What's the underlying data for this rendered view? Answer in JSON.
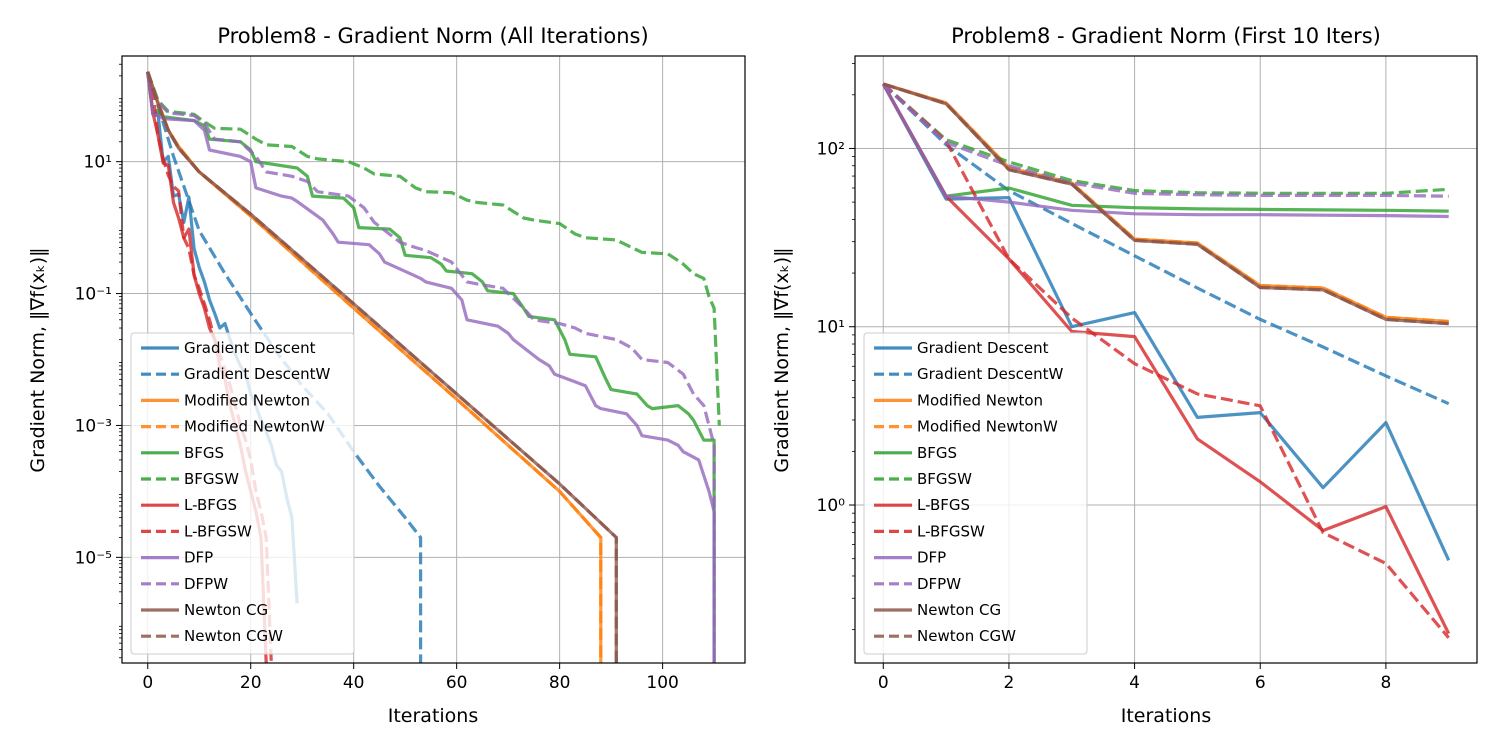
{
  "chart_data": [
    {
      "type": "line",
      "title": "Problem8 - Gradient Norm (All Iterations)",
      "xlabel": "Iterations",
      "ylabel": "Gradient Norm, ‖∇f(xₖ)‖",
      "yscale": "log",
      "xlim": [
        -5,
        116
      ],
      "ylim": [
        2.5e-07,
        400
      ],
      "xticks": [
        0,
        20,
        40,
        60,
        80,
        100
      ],
      "xtick_labels": [
        "0",
        "20",
        "40",
        "60",
        "80",
        "100"
      ],
      "yticks": [
        1e-05,
        0.001,
        0.1,
        10.0
      ],
      "ytick_labels": [
        "10⁻⁵",
        "10⁻³",
        "10⁻¹",
        "10¹"
      ],
      "grid": true,
      "legend_position": "lower-left",
      "series": [
        {
          "name": "Gradient Descent",
          "color": "#1f77b4",
          "dash": false,
          "x": [
            0,
            1,
            2,
            3,
            4,
            5,
            6,
            7,
            8,
            9,
            10,
            11,
            12,
            13,
            14,
            15,
            16,
            17,
            18,
            19,
            20,
            21,
            22,
            23,
            24,
            25,
            26,
            27,
            28,
            29
          ],
          "y": [
            230,
            52,
            53,
            10,
            12,
            3,
            3.2,
            1.2,
            2.9,
            0.48,
            0.25,
            0.15,
            0.08,
            0.05,
            0.03,
            0.035,
            0.02,
            0.012,
            0.008,
            0.006,
            0.003,
            0.002,
            0.0012,
            0.0008,
            0.0005,
            0.00025,
            0.0002,
            8e-05,
            4e-05,
            2e-06
          ]
        },
        {
          "name": "Gradient DescentW",
          "color": "#1f77b4",
          "dash": true,
          "x": [
            0,
            5,
            10,
            15,
            20,
            25,
            30,
            35,
            40,
            45,
            50,
            53,
            53
          ],
          "y": [
            230,
            12,
            0.9,
            0.2,
            0.05,
            0.013,
            0.004,
            0.0015,
            0.0004,
            0.00012,
            4e-05,
            2e-05,
            2.5e-07
          ]
        },
        {
          "name": "Modified Newton",
          "color": "#ff7f0e",
          "dash": false,
          "x": [
            0,
            2,
            4,
            6,
            10,
            20,
            40,
            60,
            80,
            88,
            88
          ],
          "y": [
            230,
            80,
            30,
            17,
            7,
            1.5,
            0.06,
            0.0025,
            0.0001,
            2e-05,
            2.5e-07
          ]
        },
        {
          "name": "Modified NewtonW",
          "color": "#ff7f0e",
          "dash": true,
          "x": [
            0,
            2,
            4,
            6,
            10,
            20,
            40,
            60,
            80,
            88,
            88
          ],
          "y": [
            230,
            80,
            30,
            17,
            7,
            1.5,
            0.06,
            0.0025,
            0.0001,
            2e-05,
            2.5e-07
          ]
        },
        {
          "name": "BFGS",
          "color": "#2ca02c",
          "dash": false,
          "x": [
            0,
            1,
            2,
            3,
            9,
            11,
            12,
            18,
            20,
            21,
            29,
            31,
            32,
            38,
            40,
            41,
            47,
            49,
            50,
            55,
            57,
            58,
            63,
            65,
            66,
            71,
            73,
            74,
            79,
            81,
            82,
            87,
            89,
            90,
            95,
            97,
            98,
            103,
            105,
            106,
            108,
            110,
            110
          ],
          "y": [
            230,
            55,
            60,
            48,
            42,
            35,
            22,
            20,
            15,
            10,
            8,
            6,
            3,
            2.8,
            2,
            1,
            0.95,
            0.7,
            0.38,
            0.35,
            0.28,
            0.22,
            0.2,
            0.15,
            0.11,
            0.1,
            0.06,
            0.045,
            0.04,
            0.02,
            0.012,
            0.011,
            0.005,
            0.0035,
            0.003,
            0.002,
            0.0018,
            0.002,
            0.0015,
            0.0012,
            0.0006,
            0.0006,
            2.5e-07
          ]
        },
        {
          "name": "BFGSW",
          "color": "#2ca02c",
          "dash": true,
          "x": [
            0,
            2,
            4,
            9,
            11,
            13,
            18,
            21,
            23,
            28,
            31,
            33,
            39,
            42,
            44,
            49,
            52,
            54,
            59,
            62,
            64,
            69,
            73,
            75,
            80,
            83,
            85,
            91,
            94,
            96,
            101,
            104,
            106,
            108,
            109,
            110,
            111
          ],
          "y": [
            230,
            85,
            58,
            52,
            40,
            32,
            31,
            22,
            18,
            17,
            12,
            11,
            10,
            8,
            6.5,
            6,
            4,
            3.5,
            3.4,
            2.6,
            2.4,
            2.2,
            1.4,
            1.3,
            1.15,
            0.8,
            0.7,
            0.65,
            0.5,
            0.42,
            0.4,
            0.28,
            0.2,
            0.17,
            0.09,
            0.06,
            0.001
          ]
        },
        {
          "name": "L-BFGS",
          "color": "#d62728",
          "dash": false,
          "x": [
            0,
            1,
            2,
            3,
            4,
            5,
            6,
            7,
            8,
            9,
            10,
            11,
            12,
            13,
            14,
            15,
            16,
            17,
            18,
            19,
            20,
            21,
            22,
            23
          ],
          "y": [
            230,
            55,
            25,
            9.5,
            8.8,
            2.4,
            1.4,
            0.7,
            0.95,
            0.19,
            0.1,
            0.06,
            0.03,
            0.02,
            0.008,
            0.005,
            0.002,
            0.001,
            0.0005,
            0.0002,
            0.0001,
            5e-05,
            2e-05,
            2.5e-07
          ]
        },
        {
          "name": "L-BFGSW",
          "color": "#d62728",
          "dash": true,
          "x": [
            0,
            1,
            2,
            3,
            4,
            5,
            6,
            7,
            8,
            9,
            10,
            11,
            12,
            13,
            14,
            15,
            16,
            17,
            18,
            19,
            20,
            21,
            22,
            23,
            24
          ],
          "y": [
            230,
            110,
            25,
            11,
            6.2,
            4.2,
            3.6,
            0.7,
            0.48,
            0.19,
            0.12,
            0.07,
            0.04,
            0.02,
            0.012,
            0.007,
            0.004,
            0.002,
            0.001,
            0.0006,
            0.0003,
            0.0001,
            5e-05,
            2e-05,
            2.5e-07
          ]
        },
        {
          "name": "DFP",
          "color": "#9467bd",
          "dash": false,
          "x": [
            0,
            1,
            2,
            3,
            9,
            11,
            12,
            18,
            20,
            21,
            26,
            28,
            29,
            34,
            36,
            37,
            43,
            45,
            46,
            51,
            53,
            54,
            59,
            61,
            62,
            68,
            70,
            71,
            76,
            78,
            79,
            85,
            87,
            88,
            93,
            95,
            96,
            101,
            103,
            104,
            107,
            109,
            110,
            110
          ],
          "y": [
            230,
            52,
            50,
            45,
            42,
            30,
            15,
            12,
            10,
            4,
            3,
            2.8,
            2.5,
            1.3,
            0.8,
            0.6,
            0.55,
            0.4,
            0.3,
            0.2,
            0.17,
            0.15,
            0.12,
            0.08,
            0.04,
            0.032,
            0.025,
            0.02,
            0.01,
            0.008,
            0.006,
            0.004,
            0.002,
            0.0018,
            0.0015,
            0.001,
            0.0007,
            0.0006,
            0.0005,
            0.0004,
            0.0003,
            0.0001,
            5e-05,
            2.5e-07
          ]
        },
        {
          "name": "DFPW",
          "color": "#9467bd",
          "dash": true,
          "x": [
            0,
            2,
            4,
            9,
            11,
            13,
            18,
            21,
            23,
            28,
            31,
            33,
            39,
            42,
            44,
            49,
            52,
            54,
            59,
            62,
            64,
            69,
            73,
            75,
            80,
            83,
            85,
            91,
            94,
            96,
            101,
            104,
            106,
            108,
            109,
            110,
            110
          ],
          "y": [
            230,
            80,
            55,
            50,
            38,
            22,
            20,
            12,
            7,
            6,
            5,
            3.5,
            3,
            2,
            1.2,
            0.6,
            0.5,
            0.45,
            0.3,
            0.15,
            0.14,
            0.12,
            0.06,
            0.04,
            0.035,
            0.03,
            0.025,
            0.02,
            0.015,
            0.01,
            0.009,
            0.006,
            0.003,
            0.002,
            0.001,
            0.0005,
            2.5e-07
          ]
        },
        {
          "name": "Newton CG",
          "color": "#8c564b",
          "dash": false,
          "x": [
            0,
            2,
            4,
            6,
            10,
            20,
            40,
            60,
            80,
            91,
            91
          ],
          "y": [
            230,
            75,
            30,
            16,
            7,
            1.6,
            0.07,
            0.003,
            0.00013,
            2e-05,
            2.5e-07
          ]
        },
        {
          "name": "Newton CGW",
          "color": "#8c564b",
          "dash": true,
          "x": [
            0,
            2,
            4,
            6,
            10,
            20,
            40,
            60,
            80,
            91,
            91
          ],
          "y": [
            230,
            75,
            30,
            16,
            7,
            1.6,
            0.07,
            0.003,
            0.00013,
            2e-05,
            2.5e-07
          ]
        }
      ]
    },
    {
      "type": "line",
      "title": "Problem8 - Gradient Norm (First 10 Iters)",
      "xlabel": "Iterations",
      "ylabel": "Gradient Norm, ‖∇f(xₖ)‖",
      "yscale": "log",
      "xlim": [
        -0.45,
        9.45
      ],
      "ylim": [
        0.13,
        330
      ],
      "xticks": [
        0,
        2,
        4,
        6,
        8
      ],
      "xtick_labels": [
        "0",
        "2",
        "4",
        "6",
        "8"
      ],
      "yticks": [
        1,
        10,
        100
      ],
      "ytick_labels": [
        "10⁰",
        "10¹",
        "10²"
      ],
      "grid": true,
      "legend_position": "lower-left",
      "series": [
        {
          "name": "Gradient Descent",
          "color": "#1f77b4",
          "dash": false,
          "x": [
            0,
            1,
            2,
            3,
            4,
            5,
            6,
            7,
            8,
            9
          ],
          "y": [
            230,
            52,
            53,
            10,
            12,
            3.1,
            3.3,
            1.25,
            2.9,
            0.49
          ]
        },
        {
          "name": "Gradient DescentW",
          "color": "#1f77b4",
          "dash": true,
          "x": [
            0,
            1,
            2,
            3,
            4,
            5,
            6,
            7,
            8,
            9
          ],
          "y": [
            230,
            105,
            58,
            38,
            25,
            16.5,
            11,
            7.7,
            5.3,
            3.7
          ]
        },
        {
          "name": "Modified Newton",
          "color": "#ff7f0e",
          "dash": false,
          "x": [
            0,
            1,
            2,
            3,
            4,
            5,
            6,
            7,
            8,
            9
          ],
          "y": [
            230,
            180,
            78,
            64,
            31,
            29.5,
            17,
            16.5,
            11.3,
            10.7
          ]
        },
        {
          "name": "Modified NewtonW",
          "color": "#ff7f0e",
          "dash": true,
          "x": [
            0,
            1,
            2,
            3,
            4,
            5,
            6,
            7,
            8,
            9
          ],
          "y": [
            230,
            180,
            78,
            64,
            31,
            29.5,
            17,
            16.5,
            11.3,
            10.7
          ]
        },
        {
          "name": "BFGS",
          "color": "#2ca02c",
          "dash": false,
          "x": [
            0,
            1,
            2,
            3,
            4,
            5,
            6,
            7,
            8,
            9
          ],
          "y": [
            230,
            54,
            60,
            48,
            46.5,
            45.8,
            45.5,
            45.2,
            45,
            44.5
          ]
        },
        {
          "name": "BFGSW",
          "color": "#2ca02c",
          "dash": true,
          "x": [
            0,
            1,
            2,
            3,
            4,
            5,
            6,
            7,
            8,
            9
          ],
          "y": [
            230,
            112,
            84,
            66,
            58,
            56.5,
            56,
            56,
            56,
            59
          ]
        },
        {
          "name": "L-BFGS",
          "color": "#d62728",
          "dash": false,
          "x": [
            0,
            1,
            2,
            3,
            4,
            5,
            6,
            7,
            8,
            9
          ],
          "y": [
            230,
            54,
            24,
            9.4,
            8.8,
            2.35,
            1.35,
            0.72,
            0.98,
            0.19
          ]
        },
        {
          "name": "L-BFGSW",
          "color": "#d62728",
          "dash": true,
          "x": [
            0,
            1,
            2,
            3,
            4,
            5,
            6,
            7,
            8,
            9
          ],
          "y": [
            230,
            110,
            24,
            11.2,
            6.2,
            4.2,
            3.6,
            0.7,
            0.47,
            0.18
          ]
        },
        {
          "name": "DFP",
          "color": "#9467bd",
          "dash": false,
          "x": [
            0,
            1,
            2,
            3,
            4,
            5,
            6,
            7,
            8,
            9
          ],
          "y": [
            230,
            54,
            50,
            45,
            43,
            42.5,
            42.5,
            42.2,
            42,
            41.5
          ]
        },
        {
          "name": "DFPW",
          "color": "#9467bd",
          "dash": true,
          "x": [
            0,
            1,
            2,
            3,
            4,
            5,
            6,
            7,
            8,
            9
          ],
          "y": [
            230,
            108,
            80,
            64,
            56,
            55,
            54.5,
            54.5,
            54.5,
            54
          ]
        },
        {
          "name": "Newton CG",
          "color": "#8c564b",
          "dash": false,
          "x": [
            0,
            1,
            2,
            3,
            4,
            5,
            6,
            7,
            8,
            9
          ],
          "y": [
            230,
            178,
            76,
            63,
            30.5,
            29,
            16.6,
            16.1,
            11,
            10.4
          ]
        },
        {
          "name": "Newton CGW",
          "color": "#8c564b",
          "dash": true,
          "x": [
            0,
            1,
            2,
            3,
            4,
            5,
            6,
            7,
            8,
            9
          ],
          "y": [
            230,
            178,
            76,
            63,
            30.5,
            29,
            16.6,
            16.1,
            11,
            10.4
          ]
        }
      ]
    }
  ]
}
